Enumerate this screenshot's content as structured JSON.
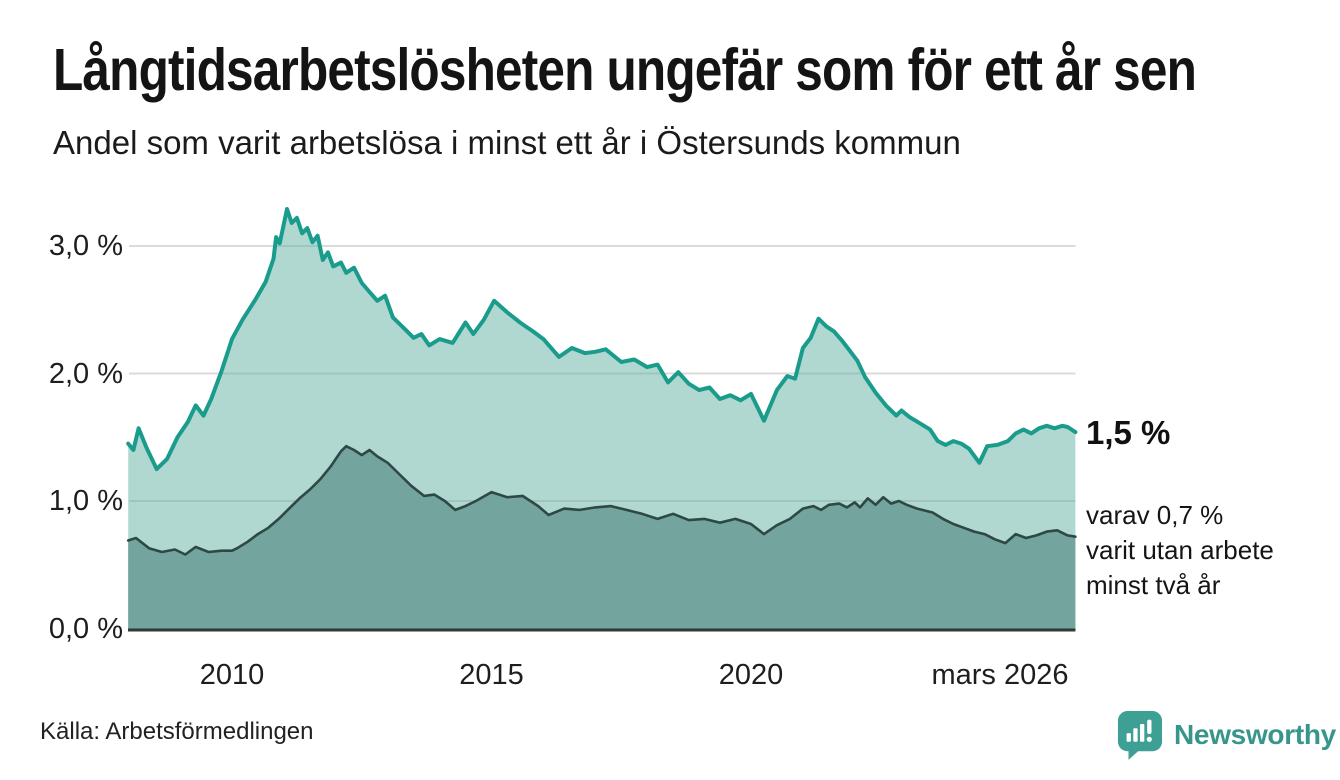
{
  "header": {
    "title": "Långtidsarbetslösheten ungefär som för ett år sen",
    "subtitle": "Andel som varit arbetslösa i minst ett år i Östersunds kommun"
  },
  "annotations": {
    "latest_main": "1,5 %",
    "latest_detail_lines": [
      "varav 0,7 %",
      "varit utan arbete",
      "minst två år"
    ]
  },
  "footer": {
    "source": "Källa: Arbetsförmedlingen",
    "brand": "Newsworthy",
    "brand_icon": "newsworthy-chart-bubble-icon",
    "brand_color": "#37968c"
  },
  "colors": {
    "background": "#ffffff",
    "title_text": "#141414",
    "body_text": "#1e1e1e",
    "gridline": "#dbdbdb",
    "axis_line": "#2f3b39",
    "series_1yr_line": "#1a9c8c",
    "series_1yr_fill_rgba": "rgba(97,177,161,0.5)",
    "series_2yr_fill": "#73a49d",
    "series_2yr_line": "#2e4945"
  },
  "chart_data": {
    "type": "area",
    "title": "Långtidsarbetslösheten ungefär som för ett år sen",
    "subtitle": "Andel som varit arbetslösa i minst ett år i Östersunds kommun",
    "unit": "percent of population",
    "x_axis": {
      "range": [
        2008.0,
        2026.25
      ],
      "ticks": [
        {
          "label": "2010",
          "value": 2010
        },
        {
          "label": "2015",
          "value": 2015
        },
        {
          "label": "2020",
          "value": 2020
        },
        {
          "label": "mars 2026",
          "value": 2026.17
        }
      ]
    },
    "y_axis": {
      "range": [
        0,
        3.45
      ],
      "gridlines": [
        1,
        2,
        3
      ],
      "ticks": [
        {
          "label": "0,0 %",
          "value": 0
        },
        {
          "label": "1,0 %",
          "value": 1
        },
        {
          "label": "2,0 %",
          "value": 2
        },
        {
          "label": "3,0 %",
          "value": 3
        }
      ]
    },
    "legend_position": "right-annotations",
    "grid": true,
    "series": [
      {
        "name": "Arbetslösa minst ett år",
        "latest_label": "1,5 %",
        "latest_value": 1.5,
        "color": "#1a9c8c",
        "fill": "rgba(97,177,161,0.5)",
        "stroke_width": 4,
        "points": [
          [
            2008.0,
            1.45
          ],
          [
            2008.1,
            1.4
          ],
          [
            2008.2,
            1.57
          ],
          [
            2008.35,
            1.42
          ],
          [
            2008.55,
            1.25
          ],
          [
            2008.75,
            1.33
          ],
          [
            2008.95,
            1.5
          ],
          [
            2009.15,
            1.62
          ],
          [
            2009.3,
            1.75
          ],
          [
            2009.45,
            1.67
          ],
          [
            2009.6,
            1.8
          ],
          [
            2009.8,
            2.02
          ],
          [
            2010.0,
            2.27
          ],
          [
            2010.2,
            2.42
          ],
          [
            2010.45,
            2.58
          ],
          [
            2010.65,
            2.72
          ],
          [
            2010.8,
            2.9
          ],
          [
            2010.85,
            3.07
          ],
          [
            2010.92,
            3.02
          ],
          [
            2011.06,
            3.29
          ],
          [
            2011.15,
            3.18
          ],
          [
            2011.25,
            3.22
          ],
          [
            2011.35,
            3.1
          ],
          [
            2011.45,
            3.14
          ],
          [
            2011.55,
            3.03
          ],
          [
            2011.65,
            3.08
          ],
          [
            2011.75,
            2.89
          ],
          [
            2011.85,
            2.95
          ],
          [
            2011.95,
            2.84
          ],
          [
            2012.1,
            2.87
          ],
          [
            2012.2,
            2.79
          ],
          [
            2012.35,
            2.83
          ],
          [
            2012.5,
            2.71
          ],
          [
            2012.65,
            2.64
          ],
          [
            2012.8,
            2.57
          ],
          [
            2012.95,
            2.61
          ],
          [
            2013.1,
            2.44
          ],
          [
            2013.3,
            2.36
          ],
          [
            2013.5,
            2.28
          ],
          [
            2013.65,
            2.31
          ],
          [
            2013.8,
            2.22
          ],
          [
            2014.0,
            2.27
          ],
          [
            2014.25,
            2.24
          ],
          [
            2014.5,
            2.4
          ],
          [
            2014.65,
            2.31
          ],
          [
            2014.85,
            2.42
          ],
          [
            2015.05,
            2.57
          ],
          [
            2015.3,
            2.48
          ],
          [
            2015.55,
            2.4
          ],
          [
            2015.8,
            2.33
          ],
          [
            2016.0,
            2.27
          ],
          [
            2016.3,
            2.13
          ],
          [
            2016.55,
            2.2
          ],
          [
            2016.8,
            2.16
          ],
          [
            2017.0,
            2.17
          ],
          [
            2017.2,
            2.19
          ],
          [
            2017.5,
            2.09
          ],
          [
            2017.75,
            2.11
          ],
          [
            2018.0,
            2.05
          ],
          [
            2018.2,
            2.07
          ],
          [
            2018.4,
            1.93
          ],
          [
            2018.6,
            2.01
          ],
          [
            2018.8,
            1.92
          ],
          [
            2019.0,
            1.87
          ],
          [
            2019.2,
            1.89
          ],
          [
            2019.4,
            1.8
          ],
          [
            2019.6,
            1.83
          ],
          [
            2019.8,
            1.79
          ],
          [
            2020.0,
            1.84
          ],
          [
            2020.25,
            1.63
          ],
          [
            2020.5,
            1.87
          ],
          [
            2020.7,
            1.98
          ],
          [
            2020.85,
            1.96
          ],
          [
            2021.0,
            2.2
          ],
          [
            2021.15,
            2.28
          ],
          [
            2021.3,
            2.43
          ],
          [
            2021.45,
            2.37
          ],
          [
            2021.6,
            2.33
          ],
          [
            2021.75,
            2.26
          ],
          [
            2021.9,
            2.18
          ],
          [
            2022.05,
            2.1
          ],
          [
            2022.2,
            1.97
          ],
          [
            2022.4,
            1.85
          ],
          [
            2022.6,
            1.75
          ],
          [
            2022.8,
            1.67
          ],
          [
            2022.9,
            1.71
          ],
          [
            2023.05,
            1.66
          ],
          [
            2023.25,
            1.61
          ],
          [
            2023.45,
            1.56
          ],
          [
            2023.6,
            1.47
          ],
          [
            2023.75,
            1.44
          ],
          [
            2023.9,
            1.47
          ],
          [
            2024.05,
            1.45
          ],
          [
            2024.2,
            1.41
          ],
          [
            2024.4,
            1.3
          ],
          [
            2024.55,
            1.43
          ],
          [
            2024.75,
            1.44
          ],
          [
            2024.95,
            1.47
          ],
          [
            2025.1,
            1.53
          ],
          [
            2025.25,
            1.56
          ],
          [
            2025.4,
            1.53
          ],
          [
            2025.55,
            1.57
          ],
          [
            2025.7,
            1.59
          ],
          [
            2025.85,
            1.57
          ],
          [
            2026.0,
            1.59
          ],
          [
            2026.1,
            1.58
          ],
          [
            2026.25,
            1.54
          ]
        ]
      },
      {
        "name": "varav arbetslösa minst två år",
        "latest_label": "varav 0,7 % varit utan arbete minst två år",
        "latest_value": 0.7,
        "color": "#2e4945",
        "fill": "#73a49d",
        "stroke_width": 2.6,
        "points": [
          [
            2008.0,
            0.69
          ],
          [
            2008.15,
            0.71
          ],
          [
            2008.4,
            0.63
          ],
          [
            2008.65,
            0.6
          ],
          [
            2008.9,
            0.62
          ],
          [
            2009.1,
            0.58
          ],
          [
            2009.3,
            0.64
          ],
          [
            2009.55,
            0.6
          ],
          [
            2009.8,
            0.61
          ],
          [
            2010.0,
            0.61
          ],
          [
            2010.1,
            0.63
          ],
          [
            2010.3,
            0.68
          ],
          [
            2010.5,
            0.74
          ],
          [
            2010.7,
            0.79
          ],
          [
            2010.9,
            0.86
          ],
          [
            2011.1,
            0.94
          ],
          [
            2011.3,
            1.02
          ],
          [
            2011.5,
            1.09
          ],
          [
            2011.7,
            1.17
          ],
          [
            2011.9,
            1.27
          ],
          [
            2012.0,
            1.33
          ],
          [
            2012.1,
            1.39
          ],
          [
            2012.2,
            1.43
          ],
          [
            2012.35,
            1.4
          ],
          [
            2012.5,
            1.36
          ],
          [
            2012.65,
            1.4
          ],
          [
            2012.8,
            1.35
          ],
          [
            2013.0,
            1.3
          ],
          [
            2013.2,
            1.22
          ],
          [
            2013.45,
            1.12
          ],
          [
            2013.7,
            1.04
          ],
          [
            2013.9,
            1.05
          ],
          [
            2014.1,
            1.0
          ],
          [
            2014.3,
            0.93
          ],
          [
            2014.5,
            0.96
          ],
          [
            2014.7,
            1.0
          ],
          [
            2015.0,
            1.07
          ],
          [
            2015.3,
            1.03
          ],
          [
            2015.6,
            1.04
          ],
          [
            2015.9,
            0.96
          ],
          [
            2016.1,
            0.89
          ],
          [
            2016.4,
            0.94
          ],
          [
            2016.7,
            0.93
          ],
          [
            2017.0,
            0.95
          ],
          [
            2017.3,
            0.96
          ],
          [
            2017.6,
            0.93
          ],
          [
            2017.9,
            0.9
          ],
          [
            2018.2,
            0.86
          ],
          [
            2018.5,
            0.9
          ],
          [
            2018.8,
            0.85
          ],
          [
            2019.1,
            0.86
          ],
          [
            2019.4,
            0.83
          ],
          [
            2019.7,
            0.86
          ],
          [
            2020.0,
            0.82
          ],
          [
            2020.25,
            0.74
          ],
          [
            2020.5,
            0.81
          ],
          [
            2020.75,
            0.86
          ],
          [
            2021.0,
            0.94
          ],
          [
            2021.2,
            0.96
          ],
          [
            2021.35,
            0.93
          ],
          [
            2021.5,
            0.97
          ],
          [
            2021.7,
            0.98
          ],
          [
            2021.85,
            0.95
          ],
          [
            2022.0,
            0.99
          ],
          [
            2022.1,
            0.95
          ],
          [
            2022.25,
            1.02
          ],
          [
            2022.4,
            0.97
          ],
          [
            2022.55,
            1.03
          ],
          [
            2022.7,
            0.98
          ],
          [
            2022.85,
            1.0
          ],
          [
            2023.0,
            0.97
          ],
          [
            2023.2,
            0.94
          ],
          [
            2023.5,
            0.91
          ],
          [
            2023.7,
            0.86
          ],
          [
            2023.9,
            0.82
          ],
          [
            2024.1,
            0.79
          ],
          [
            2024.3,
            0.76
          ],
          [
            2024.5,
            0.74
          ],
          [
            2024.7,
            0.7
          ],
          [
            2024.9,
            0.67
          ],
          [
            2025.1,
            0.74
          ],
          [
            2025.3,
            0.71
          ],
          [
            2025.5,
            0.73
          ],
          [
            2025.7,
            0.76
          ],
          [
            2025.9,
            0.77
          ],
          [
            2026.1,
            0.73
          ],
          [
            2026.25,
            0.72
          ]
        ]
      }
    ]
  }
}
